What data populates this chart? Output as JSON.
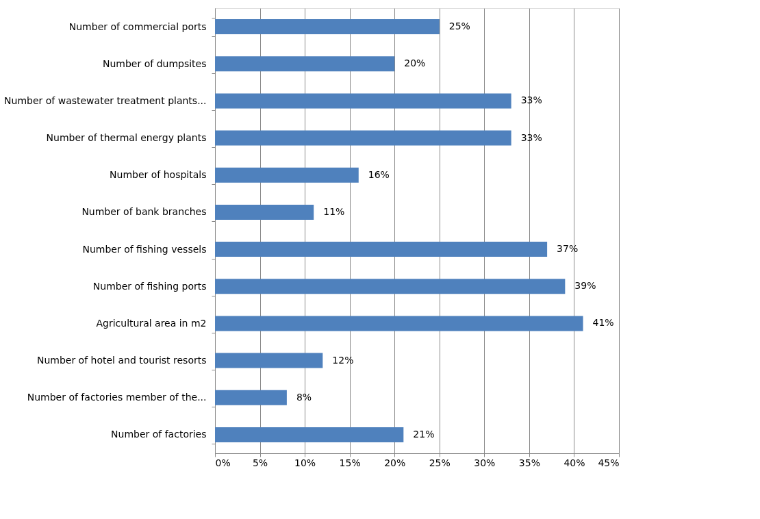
{
  "chart_data": {
    "type": "bar",
    "orientation": "horizontal",
    "categories": [
      "Number of commercial ports",
      "Number of dumpsites",
      "Number of wastewater treatment plants...",
      "Number of thermal energy plants",
      "Number of hospitals",
      "Number of bank branches",
      "Number of fishing vessels",
      "Number of fishing ports",
      "Agricultural area in m2",
      "Number of hotel and tourist resorts",
      "Number of factories member of the...",
      "Number of factories"
    ],
    "values": [
      25,
      20,
      33,
      33,
      16,
      11,
      37,
      39,
      41,
      12,
      8,
      21
    ],
    "value_labels": [
      "25%",
      "20%",
      "33%",
      "33%",
      "16%",
      "11%",
      "37%",
      "39%",
      "41%",
      "12%",
      "8%",
      "21%"
    ],
    "color": "#4f81bd",
    "xlim": [
      0,
      45
    ],
    "xticks": [
      {
        "value": 0,
        "label": "0%"
      },
      {
        "value": 5,
        "label": "5%"
      },
      {
        "value": 10,
        "label": "10%"
      },
      {
        "value": 15,
        "label": "15%"
      },
      {
        "value": 20,
        "label": "20%"
      },
      {
        "value": 25,
        "label": "25%"
      },
      {
        "value": 30,
        "label": "30%"
      },
      {
        "value": 35,
        "label": "35%"
      },
      {
        "value": 40,
        "label": "40%"
      },
      {
        "value": 45,
        "label": "45%"
      }
    ],
    "grid": "x"
  }
}
